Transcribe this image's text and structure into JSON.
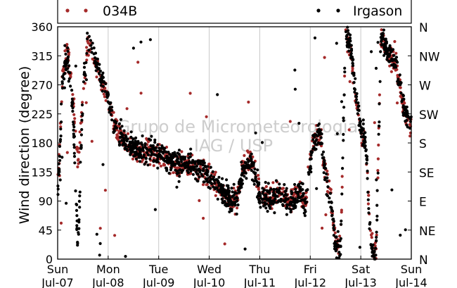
{
  "chart_data": {
    "type": "scatter",
    "title": "",
    "xlabel": "",
    "ylabel": "Wind direction (degree)",
    "ylim": [
      0,
      360
    ],
    "yticks": [
      0,
      45,
      90,
      135,
      180,
      225,
      270,
      315,
      360
    ],
    "y2_tick_labels": [
      "N",
      "NE",
      "E",
      "SE",
      "S",
      "SW",
      "W",
      "NW",
      "N"
    ],
    "x_tick_labels": [
      {
        "day": "Sun",
        "date": "Jul-07"
      },
      {
        "day": "Mon",
        "date": "Jul-08"
      },
      {
        "day": "Tue",
        "date": "Jul-09"
      },
      {
        "day": "Wed",
        "date": "Jul-10"
      },
      {
        "day": "Thu",
        "date": "Jul-11"
      },
      {
        "day": "Fri",
        "date": "Jul-12"
      },
      {
        "day": "Sat",
        "date": "Jul-13"
      },
      {
        "day": "Sun",
        "date": "Jul-14"
      }
    ],
    "x_unit": "days since Sun Jul-07 00:00",
    "xlim": [
      0,
      7
    ],
    "grid": "vertical",
    "legend_placement": "top",
    "watermark": [
      "Grupo de Micrometeorologia",
      "IAG / USP"
    ],
    "colors": {
      "034B": "#a52a2a",
      "Irgason": "#000000"
    },
    "series": [
      {
        "name": "034B",
        "marker": "dot",
        "trend": {
          "x": [
            0.0,
            0.1,
            0.2,
            0.3,
            0.4,
            0.5,
            0.6,
            0.8,
            1.0,
            1.1,
            1.2,
            1.4,
            1.6,
            1.8,
            2.0,
            2.2,
            2.4,
            2.6,
            2.8,
            3.0,
            3.2,
            3.4,
            3.55,
            3.65,
            3.75,
            3.85,
            4.0,
            4.2,
            4.4,
            4.6,
            4.8,
            4.9,
            5.0,
            5.1,
            5.2,
            5.3,
            5.4,
            5.5,
            5.6,
            5.7,
            5.8,
            5.9,
            6.0,
            6.1,
            6.2,
            6.3,
            6.4,
            6.5,
            6.6,
            6.7,
            6.8,
            6.9,
            7.0
          ],
          "y": [
            110,
            290,
            320,
            250,
            150,
            250,
            340,
            290,
            245,
            215,
            195,
            175,
            168,
            165,
            162,
            150,
            145,
            148,
            138,
            130,
            110,
            92,
            88,
            140,
            155,
            148,
            100,
            95,
            105,
            85,
            110,
            80,
            155,
            190,
            195,
            130,
            100,
            30,
            15,
            345,
            320,
            255,
            200,
            175,
            30,
            10,
            350,
            320,
            310,
            300,
            250,
            215,
            210
          ]
        },
        "spread": 14
      },
      {
        "name": "Irgason",
        "marker": "dot",
        "trend": {
          "x": [
            0.0,
            0.1,
            0.2,
            0.3,
            0.4,
            0.5,
            0.6,
            0.8,
            1.0,
            1.1,
            1.2,
            1.4,
            1.6,
            1.8,
            2.0,
            2.2,
            2.4,
            2.6,
            2.8,
            3.0,
            3.2,
            3.4,
            3.55,
            3.65,
            3.75,
            3.85,
            4.0,
            4.2,
            4.4,
            4.6,
            4.8,
            4.9,
            5.0,
            5.1,
            5.2,
            5.3,
            5.4,
            5.5,
            5.6,
            5.7,
            5.8,
            5.9,
            6.0,
            6.1,
            6.2,
            6.3,
            6.4,
            6.5,
            6.6,
            6.7,
            6.8,
            6.9,
            7.0
          ],
          "y": [
            90,
            280,
            310,
            240,
            10,
            260,
            345,
            295,
            250,
            220,
            198,
            178,
            170,
            168,
            165,
            152,
            147,
            150,
            140,
            132,
            112,
            95,
            90,
            135,
            150,
            145,
            98,
            93,
            102,
            82,
            108,
            78,
            150,
            185,
            192,
            128,
            95,
            25,
            10,
            350,
            330,
            260,
            205,
            180,
            25,
            5,
            345,
            325,
            315,
            305,
            255,
            220,
            215
          ]
        },
        "spread": 16
      }
    ]
  }
}
